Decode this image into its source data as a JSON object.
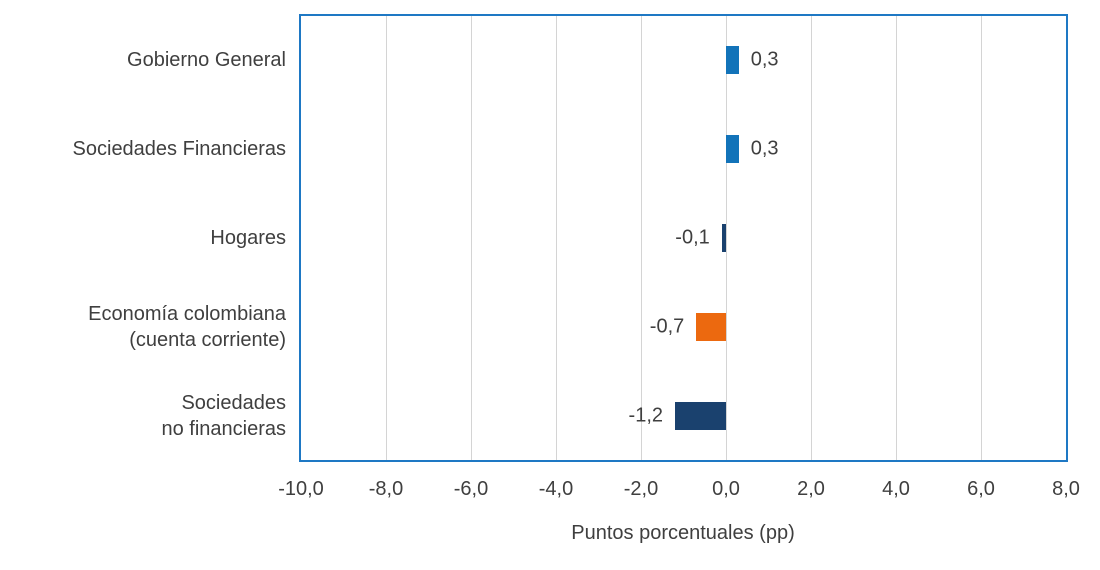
{
  "chart_data": {
    "type": "bar",
    "orientation": "horizontal",
    "categories": [
      "Gobierno General",
      "Sociedades Financieras",
      "Hogares",
      "Economía colombiana\n(cuenta corriente)",
      "Sociedades\nno financieras"
    ],
    "values": [
      0.3,
      0.3,
      -0.1,
      -0.7,
      -1.2
    ],
    "value_labels": [
      "0,3",
      "0,3",
      "-0,1",
      "-0,7",
      "-1,2"
    ],
    "bar_colors": [
      "#1273b9",
      "#1273b9",
      "#1a416e",
      "#ec690f",
      "#1a416e"
    ],
    "xlabel": "Puntos porcentuales (pp)",
    "xlim": [
      -10,
      8
    ],
    "x_ticks": [
      {
        "value": -10,
        "label": "-10,0"
      },
      {
        "value": -8,
        "label": "-8,0"
      },
      {
        "value": -6,
        "label": "-6,0"
      },
      {
        "value": -4,
        "label": "-4,0"
      },
      {
        "value": -2,
        "label": "-2,0"
      },
      {
        "value": 0,
        "label": "0,0"
      },
      {
        "value": 2,
        "label": "2,0"
      },
      {
        "value": 4,
        "label": "4,0"
      },
      {
        "value": 6,
        "label": "6,0"
      },
      {
        "value": 8,
        "label": "8,0"
      }
    ],
    "grid": "vertical",
    "legend": "none",
    "title": "",
    "style": {
      "plot_border_color": "#1e78c4",
      "gridline_color": "#d4d4d4",
      "text_color": "#3f3f3f",
      "background": "#ffffff"
    }
  }
}
